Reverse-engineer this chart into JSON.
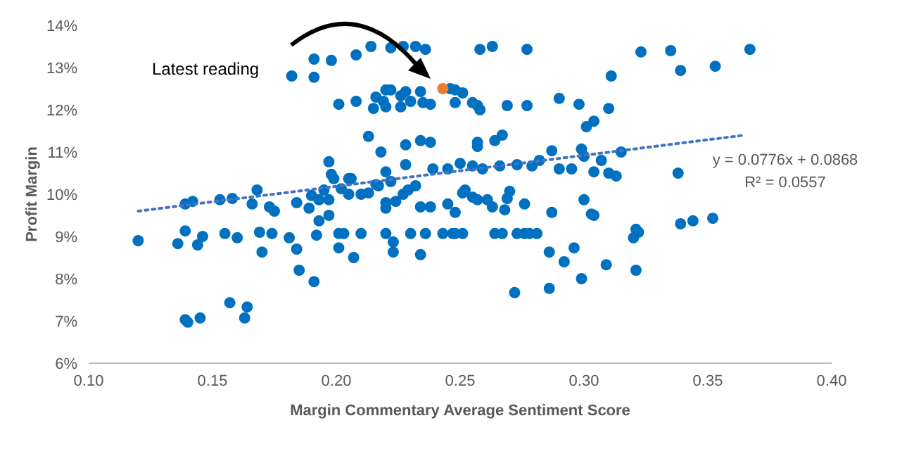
{
  "chart_data": {
    "type": "scatter",
    "xlabel": "Margin Commentary Average Sentiment Score",
    "ylabel": "Profit Margin",
    "marker": "circle",
    "xlim": [
      0.1,
      0.4
    ],
    "xticks": [
      {
        "value": 0.1,
        "label": "0.10"
      },
      {
        "value": 0.15,
        "label": "0.15"
      },
      {
        "value": 0.2,
        "label": "0.20"
      },
      {
        "value": 0.25,
        "label": "0.25"
      },
      {
        "value": 0.3,
        "label": "0.30"
      },
      {
        "value": 0.35,
        "label": "0.35"
      },
      {
        "value": 0.4,
        "label": "0.40"
      }
    ],
    "ylim": [
      6,
      14
    ],
    "yticks": [
      {
        "value": 6,
        "label": "6%"
      },
      {
        "value": 7,
        "label": "7%"
      },
      {
        "value": 8,
        "label": "8%"
      },
      {
        "value": 9,
        "label": "9%"
      },
      {
        "value": 10,
        "label": "10%"
      },
      {
        "value": 11,
        "label": "11%"
      },
      {
        "value": 12,
        "label": "12%"
      },
      {
        "value": 13,
        "label": "13%"
      },
      {
        "value": 14,
        "label": "14%"
      }
    ],
    "annotations": [
      "Latest reading",
      "y = 0.0776x + 0.0868",
      "R² = 0.0557"
    ],
    "series": [
      {
        "color": "#0070c0",
        "x": [
          0.191,
          0.198,
          0.208,
          0.182,
          0.191,
          0.201,
          0.208,
          0.197,
          0.198,
          0.199,
          0.205,
          0.168,
          0.214,
          0.222,
          0.227,
          0.232,
          0.236,
          0.258,
          0.263,
          0.277,
          0.22,
          0.222,
          0.228,
          0.234,
          0.246,
          0.248,
          0.251,
          0.216,
          0.219,
          0.215,
          0.22,
          0.226,
          0.23,
          0.226,
          0.235,
          0.238,
          0.248,
          0.255,
          0.257,
          0.258,
          0.269,
          0.277,
          0.29,
          0.298,
          0.301,
          0.304,
          0.213,
          0.218,
          0.228,
          0.234,
          0.238,
          0.257,
          0.257,
          0.264,
          0.267,
          0.287,
          0.299,
          0.3,
          0.307,
          0.228,
          0.22,
          0.206,
          0.216,
          0.222,
          0.323,
          0.335,
          0.367,
          0.339,
          0.353,
          0.311,
          0.31,
          0.315,
          0.304,
          0.31,
          0.313,
          0.338,
          0.12,
          0.139,
          0.142,
          0.153,
          0.158,
          0.166,
          0.173,
          0.175,
          0.184,
          0.189,
          0.19,
          0.193,
          0.197,
          0.193,
          0.197,
          0.195,
          0.202,
          0.205,
          0.21,
          0.139,
          0.136,
          0.144,
          0.146,
          0.155,
          0.16,
          0.169,
          0.174,
          0.17,
          0.181,
          0.184,
          0.185,
          0.191,
          0.192,
          0.201,
          0.203,
          0.201,
          0.207,
          0.21,
          0.157,
          0.164,
          0.163,
          0.139,
          0.14,
          0.145,
          0.213,
          0.217,
          0.22,
          0.22,
          0.224,
          0.227,
          0.229,
          0.232,
          0.234,
          0.238,
          0.245,
          0.248,
          0.251,
          0.255,
          0.257,
          0.261,
          0.263,
          0.268,
          0.269,
          0.27,
          0.276,
          0.287,
          0.3,
          0.303,
          0.22,
          0.23,
          0.236,
          0.243,
          0.247,
          0.248,
          0.251,
          0.264,
          0.267,
          0.273,
          0.276,
          0.278,
          0.281,
          0.223,
          0.223,
          0.234,
          0.286,
          0.292,
          0.296,
          0.299,
          0.309,
          0.272,
          0.286,
          0.304,
          0.339,
          0.344,
          0.352,
          0.321,
          0.322,
          0.32,
          0.321,
          0.239,
          0.245,
          0.25,
          0.255,
          0.259,
          0.266,
          0.273,
          0.279,
          0.282,
          0.29,
          0.295,
          0.252
        ],
        "values": [
          13.2,
          13.17,
          13.3,
          12.8,
          12.77,
          12.13,
          12.2,
          10.77,
          10.47,
          10.37,
          10.37,
          10.1,
          13.5,
          13.47,
          13.5,
          13.5,
          13.43,
          13.43,
          13.5,
          13.43,
          12.47,
          12.47,
          12.43,
          12.43,
          12.5,
          12.47,
          12.4,
          12.3,
          12.2,
          12.03,
          12.07,
          12.33,
          12.2,
          12.07,
          12.17,
          12.13,
          12.17,
          12.17,
          12.1,
          12.0,
          12.1,
          12.1,
          12.27,
          12.13,
          11.6,
          11.73,
          11.37,
          11.0,
          11.17,
          11.27,
          11.23,
          11.23,
          11.13,
          11.27,
          11.4,
          11.03,
          11.07,
          10.9,
          10.8,
          10.7,
          10.53,
          10.37,
          10.23,
          10.3,
          13.37,
          13.4,
          13.43,
          12.93,
          13.03,
          12.8,
          12.03,
          11.0,
          10.53,
          10.5,
          10.43,
          10.5,
          8.9,
          9.77,
          9.83,
          9.87,
          9.9,
          9.77,
          9.7,
          9.6,
          9.8,
          9.67,
          9.97,
          9.87,
          9.87,
          9.37,
          9.5,
          10.1,
          10.13,
          10.0,
          10.0,
          9.13,
          8.83,
          8.8,
          9.0,
          9.07,
          8.97,
          9.1,
          9.07,
          8.63,
          8.97,
          8.7,
          8.2,
          7.93,
          9.03,
          9.07,
          9.07,
          8.73,
          8.5,
          9.07,
          7.43,
          7.33,
          7.07,
          7.03,
          6.97,
          7.07,
          10.03,
          10.2,
          9.8,
          9.67,
          9.83,
          10.0,
          10.1,
          10.2,
          9.7,
          9.7,
          9.77,
          9.57,
          10.03,
          9.93,
          9.87,
          9.87,
          9.7,
          9.63,
          9.9,
          10.07,
          9.77,
          9.57,
          9.87,
          9.53,
          9.07,
          9.07,
          9.07,
          9.07,
          9.07,
          9.07,
          9.07,
          9.07,
          9.07,
          9.07,
          9.07,
          9.07,
          9.07,
          8.87,
          8.63,
          8.57,
          8.63,
          8.4,
          8.73,
          8.0,
          8.33,
          7.67,
          7.77,
          9.5,
          9.3,
          9.37,
          9.43,
          9.17,
          9.1,
          8.97,
          8.2,
          10.6,
          10.6,
          10.73,
          10.67,
          10.6,
          10.67,
          10.7,
          10.67,
          10.8,
          10.6,
          10.6,
          10.1
        ]
      },
      {
        "color": "#ed7d31",
        "x": [
          0.243
        ],
        "values": [
          12.5
        ]
      },
      {
        "type": "line",
        "color": "#4472c4",
        "line_style": "dotted",
        "marker": "none",
        "x": [
          0.12,
          0.365
        ],
        "values": [
          9.6,
          11.4
        ]
      }
    ]
  }
}
